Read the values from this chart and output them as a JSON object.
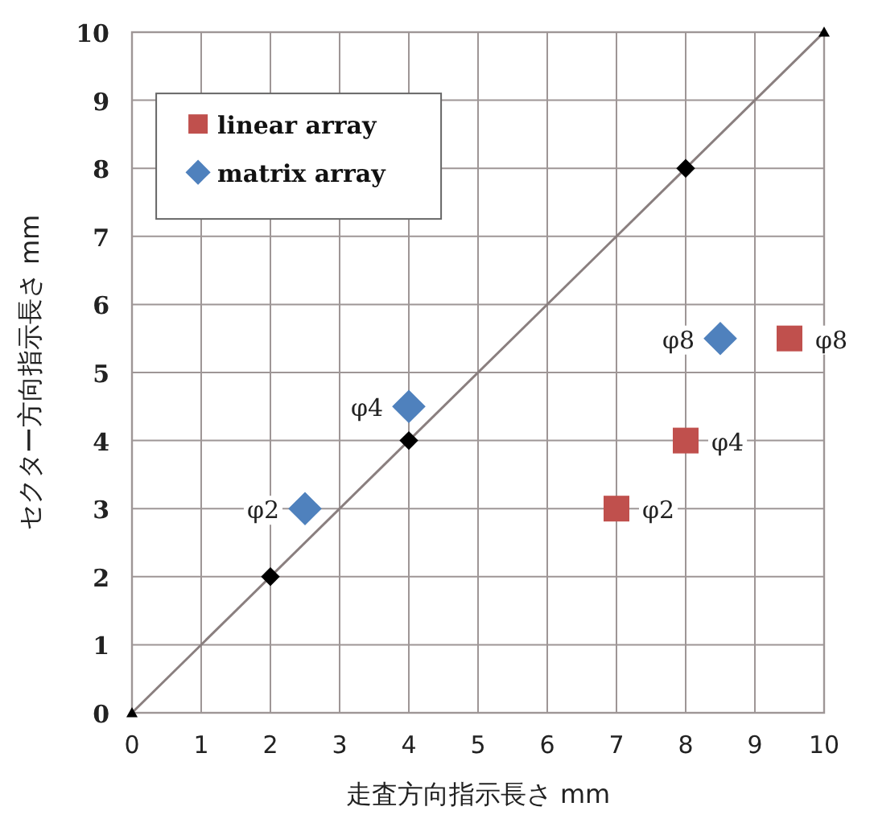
{
  "chart_data": {
    "type": "scatter",
    "xlabel": "走査方向指示長さ  mm",
    "ylabel": "セクター方向指示長さ  mm",
    "xlim": [
      0,
      10
    ],
    "ylim": [
      0,
      10
    ],
    "xticks": [
      0,
      1,
      2,
      3,
      4,
      5,
      6,
      7,
      8,
      9,
      10
    ],
    "yticks": [
      0,
      1,
      2,
      3,
      4,
      5,
      6,
      7,
      8,
      9,
      10
    ],
    "grid": true,
    "legend": "top left",
    "series": [
      {
        "name": "linear array",
        "color": "#c0504d",
        "marker": "square",
        "x": [
          7,
          8,
          9.5
        ],
        "values": [
          3,
          4,
          5.5
        ],
        "value_labels": [
          "φ2",
          "φ4",
          "φ8"
        ]
      },
      {
        "name": "matrix array",
        "color": "#4f81bd",
        "marker": "diamond",
        "x": [
          2.5,
          4,
          8.5
        ],
        "values": [
          3,
          4.5,
          5.5
        ],
        "value_labels": [
          "φ2",
          "φ4",
          "φ8"
        ]
      },
      {
        "type": "line",
        "color": "#8a7f7f",
        "marker": "none",
        "x": [
          0,
          10
        ],
        "values": [
          0,
          10
        ]
      },
      {
        "color": "#000000",
        "marker": "diamond",
        "x": [
          2,
          4,
          8
        ],
        "values": [
          2,
          4,
          8
        ]
      },
      {
        "color": "#000000",
        "marker": "triangle",
        "x": [
          0,
          10
        ],
        "values": [
          0,
          10
        ]
      }
    ]
  }
}
